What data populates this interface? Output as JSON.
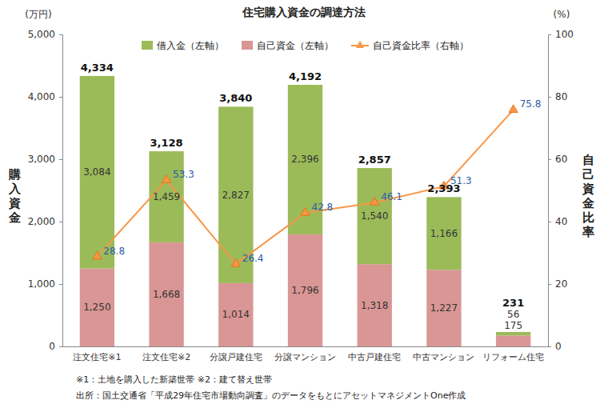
{
  "chart_data": {
    "type": "bar",
    "title": "住宅購入資金の調達方法",
    "ylabel": "購入資金",
    "y_unit": "(万円)",
    "y2label": "自己資金比率",
    "y2_unit": "(%)",
    "categories": [
      "注文住宅※1",
      "注文住宅※2",
      "分譲戸建住宅",
      "分譲マンション",
      "中古戸建住宅",
      "中古マンション",
      "リフォーム住宅"
    ],
    "series": [
      {
        "name": "借入金（左軸）",
        "type": "bar",
        "color": "#9bbb59",
        "values": [
          3084,
          1459,
          2827,
          2396,
          1540,
          1166,
          56
        ],
        "value_labels": [
          "3,084",
          "1,459",
          "2,827",
          "2,396",
          "1,540",
          "1,166",
          "56"
        ]
      },
      {
        "name": "自己資金（左軸）",
        "type": "bar",
        "color": "#da9694",
        "values": [
          1250,
          1668,
          1014,
          1796,
          1318,
          1227,
          175
        ],
        "value_labels": [
          "1,250",
          "1,668",
          "1,014",
          "1,796",
          "1,318",
          "1,227",
          "175"
        ]
      },
      {
        "name": "自己資金比率（右軸）",
        "type": "line",
        "axis": "y2",
        "color": "#f79646",
        "marker": "triangle",
        "values": [
          28.8,
          53.3,
          26.4,
          42.8,
          46.1,
          51.3,
          75.8
        ]
      }
    ],
    "totals": {
      "values": [
        4334,
        3128,
        3840,
        4192,
        2857,
        2393,
        231
      ],
      "value_labels": [
        "4,334",
        "3,128",
        "3,840",
        "4,192",
        "2,857",
        "2,393",
        "231"
      ]
    },
    "ylim": [
      0,
      5000
    ],
    "yticks": [
      0,
      {
        "value": 1000,
        "label": "1,000"
      },
      {
        "value": 2000,
        "label": "2,000"
      },
      {
        "value": 3000,
        "label": "3,000"
      },
      {
        "value": 4000,
        "label": "4,000"
      },
      {
        "value": 5000,
        "label": "5,000"
      }
    ],
    "y2lim": [
      0,
      100
    ],
    "y2ticks": [
      0,
      20,
      40,
      60,
      80,
      100
    ],
    "stacked": true,
    "data_labels": true,
    "grid": false,
    "legend": "top",
    "footnotes": [
      "※1：土地を購入した新築世帯 ※2：建て替え世帯",
      "出所：国土交通省「平成29年住宅市場動向調査」のデータをもとにアセットマネジメントOne作成"
    ]
  }
}
